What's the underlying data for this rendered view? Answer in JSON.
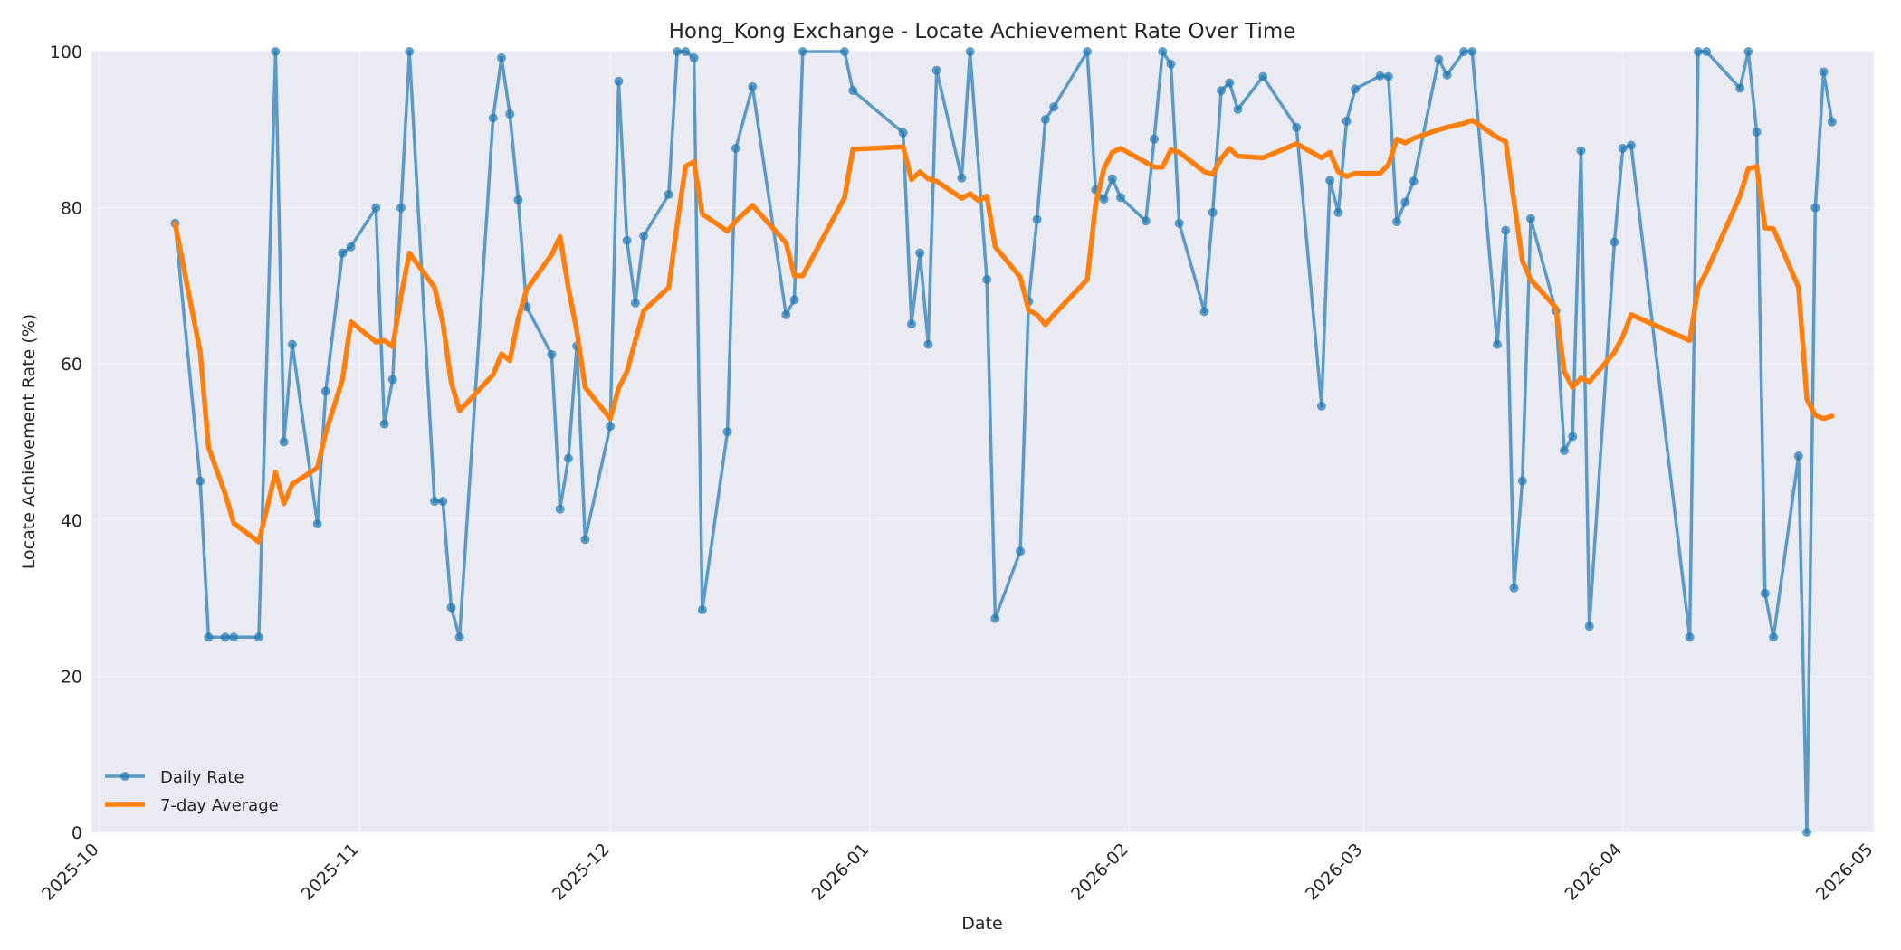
{
  "chart_data": {
    "type": "line",
    "title": "Hong_Kong Exchange - Locate Achievement Rate Over Time",
    "xlabel": "Date",
    "ylabel": "Locate Achievement Rate (%)",
    "xlim": [
      "2025-09-30",
      "2026-05-01"
    ],
    "ylim": [
      0,
      100
    ],
    "x_ticks": [
      "2025-10",
      "2025-11",
      "2025-12",
      "2026-01",
      "2026-02",
      "2026-03",
      "2026-04",
      "2026-05"
    ],
    "y_ticks": [
      0,
      20,
      40,
      60,
      80,
      100
    ],
    "grid": true,
    "legend_position": "lower-left",
    "series": [
      {
        "name": "Daily Rate",
        "color": "#1f77b4",
        "style": "line-markers",
        "points": [
          [
            "2025-10-10",
            78
          ],
          [
            "2025-10-13",
            45
          ],
          [
            "2025-10-14",
            25
          ],
          [
            "2025-10-16",
            25
          ],
          [
            "2025-10-17",
            25
          ],
          [
            "2025-10-20",
            25
          ],
          [
            "2025-10-22",
            100
          ],
          [
            "2025-10-23",
            50
          ],
          [
            "2025-10-24",
            62.5
          ],
          [
            "2025-10-27",
            39.5
          ],
          [
            "2025-10-28",
            56.5
          ],
          [
            "2025-10-30",
            74.2
          ],
          [
            "2025-10-31",
            75
          ],
          [
            "2025-11-03",
            80
          ],
          [
            "2025-11-04",
            52.3
          ],
          [
            "2025-11-05",
            58
          ],
          [
            "2025-11-06",
            80
          ],
          [
            "2025-11-07",
            100
          ],
          [
            "2025-11-10",
            42.4
          ],
          [
            "2025-11-11",
            42.4
          ],
          [
            "2025-11-12",
            28.8
          ],
          [
            "2025-11-13",
            25
          ],
          [
            "2025-11-17",
            91.5
          ],
          [
            "2025-11-18",
            99.2
          ],
          [
            "2025-11-19",
            92
          ],
          [
            "2025-11-20",
            81
          ],
          [
            "2025-11-21",
            67.3
          ],
          [
            "2025-11-24",
            61.2
          ],
          [
            "2025-11-25",
            41.4
          ],
          [
            "2025-11-26",
            47.9
          ],
          [
            "2025-11-27",
            62.3
          ],
          [
            "2025-11-28",
            37.5
          ],
          [
            "2025-12-01",
            52
          ],
          [
            "2025-12-02",
            96.2
          ],
          [
            "2025-12-03",
            75.8
          ],
          [
            "2025-12-04",
            67.8
          ],
          [
            "2025-12-05",
            76.4
          ],
          [
            "2025-12-08",
            81.7
          ],
          [
            "2025-12-09",
            100
          ],
          [
            "2025-12-10",
            100
          ],
          [
            "2025-12-11",
            99.2
          ],
          [
            "2025-12-12",
            28.5
          ],
          [
            "2025-12-15",
            51.3
          ],
          [
            "2025-12-16",
            87.6
          ],
          [
            "2025-12-18",
            95.5
          ],
          [
            "2025-12-22",
            66.3
          ],
          [
            "2025-12-23",
            68.2
          ],
          [
            "2025-12-24",
            100
          ],
          [
            "2025-12-29",
            100
          ],
          [
            "2025-12-30",
            95
          ],
          [
            "2026-01-05",
            89.6
          ],
          [
            "2026-01-06",
            65.1
          ],
          [
            "2026-01-07",
            74.2
          ],
          [
            "2026-01-08",
            62.5
          ],
          [
            "2026-01-09",
            97.6
          ],
          [
            "2026-01-12",
            83.8
          ],
          [
            "2026-01-13",
            100
          ],
          [
            "2026-01-15",
            70.8
          ],
          [
            "2026-01-16",
            27.4
          ],
          [
            "2026-01-19",
            36
          ],
          [
            "2026-01-20",
            68
          ],
          [
            "2026-01-21",
            78.5
          ],
          [
            "2026-01-22",
            91.3
          ],
          [
            "2026-01-23",
            92.9
          ],
          [
            "2026-01-27",
            100
          ],
          [
            "2026-01-28",
            82.3
          ],
          [
            "2026-01-29",
            81.1
          ],
          [
            "2026-01-30",
            83.7
          ],
          [
            "2026-01-31",
            81.3
          ],
          [
            "2026-02-03",
            78.3
          ],
          [
            "2026-02-04",
            88.8
          ],
          [
            "2026-02-05",
            100
          ],
          [
            "2026-02-06",
            98.4
          ],
          [
            "2026-02-07",
            78
          ],
          [
            "2026-02-10",
            66.7
          ],
          [
            "2026-02-11",
            79.4
          ],
          [
            "2026-02-12",
            95
          ],
          [
            "2026-02-13",
            96
          ],
          [
            "2026-02-14",
            92.6
          ],
          [
            "2026-02-17",
            96.8
          ],
          [
            "2026-02-21",
            90.3
          ],
          [
            "2026-02-24",
            54.6
          ],
          [
            "2026-02-25",
            83.5
          ],
          [
            "2026-02-26",
            79.4
          ],
          [
            "2026-02-27",
            91.1
          ],
          [
            "2026-02-28",
            95.2
          ],
          [
            "2026-03-03",
            96.9
          ],
          [
            "2026-03-04",
            96.8
          ],
          [
            "2026-03-05",
            78.2
          ],
          [
            "2026-03-06",
            80.7
          ],
          [
            "2026-03-07",
            83.4
          ],
          [
            "2026-03-10",
            99
          ],
          [
            "2026-03-11",
            97
          ],
          [
            "2026-03-13",
            100
          ],
          [
            "2026-03-14",
            100
          ],
          [
            "2026-03-17",
            62.5
          ],
          [
            "2026-03-18",
            77.1
          ],
          [
            "2026-03-19",
            31.3
          ],
          [
            "2026-03-20",
            45
          ],
          [
            "2026-03-21",
            78.6
          ],
          [
            "2026-03-24",
            66.8
          ],
          [
            "2026-03-25",
            48.9
          ],
          [
            "2026-03-26",
            50.7
          ],
          [
            "2026-03-27",
            87.3
          ],
          [
            "2026-03-28",
            26.4
          ],
          [
            "2026-03-31",
            75.6
          ],
          [
            "2026-04-01",
            87.6
          ],
          [
            "2026-04-02",
            88
          ],
          [
            "2026-04-09",
            25
          ],
          [
            "2026-04-10",
            100
          ],
          [
            "2026-04-11",
            100
          ],
          [
            "2026-04-15",
            95.3
          ],
          [
            "2026-04-16",
            100
          ],
          [
            "2026-04-17",
            89.7
          ],
          [
            "2026-04-18",
            30.6
          ],
          [
            "2026-04-19",
            25
          ],
          [
            "2026-04-22",
            48.2
          ],
          [
            "2026-04-23",
            0
          ],
          [
            "2026-04-24",
            80
          ],
          [
            "2026-04-25",
            97.4
          ],
          [
            "2026-04-26",
            91
          ]
        ]
      },
      {
        "name": "7-day Average",
        "color": "#ff7f0e",
        "style": "line",
        "points": [
          [
            "2025-10-10",
            78
          ],
          [
            "2025-10-13",
            61.5
          ],
          [
            "2025-10-14",
            49.3
          ],
          [
            "2025-10-16",
            43.3
          ],
          [
            "2025-10-17",
            39.6
          ],
          [
            "2025-10-20",
            37.2
          ],
          [
            "2025-10-22",
            46.1
          ],
          [
            "2025-10-23",
            42.1
          ],
          [
            "2025-10-24",
            44.6
          ],
          [
            "2025-10-27",
            46.7
          ],
          [
            "2025-10-28",
            51.2
          ],
          [
            "2025-10-30",
            58
          ],
          [
            "2025-10-31",
            65.4
          ],
          [
            "2025-11-03",
            62.8
          ],
          [
            "2025-11-04",
            63
          ],
          [
            "2025-11-05",
            62.2
          ],
          [
            "2025-11-06",
            68.7
          ],
          [
            "2025-11-07",
            74.2
          ],
          [
            "2025-11-10",
            69.8
          ],
          [
            "2025-11-11",
            65.2
          ],
          [
            "2025-11-12",
            57.6
          ],
          [
            "2025-11-13",
            54
          ],
          [
            "2025-11-17",
            58.6
          ],
          [
            "2025-11-18",
            61.3
          ],
          [
            "2025-11-19",
            60.4
          ],
          [
            "2025-11-20",
            65.8
          ],
          [
            "2025-11-21",
            69.5
          ],
          [
            "2025-11-24",
            74
          ],
          [
            "2025-11-25",
            76.3
          ],
          [
            "2025-11-26",
            69.7
          ],
          [
            "2025-11-27",
            64.2
          ],
          [
            "2025-11-28",
            57
          ],
          [
            "2025-12-01",
            53
          ],
          [
            "2025-12-02",
            56.9
          ],
          [
            "2025-12-03",
            59
          ],
          [
            "2025-12-04",
            63
          ],
          [
            "2025-12-05",
            66.8
          ],
          [
            "2025-12-08",
            69.8
          ],
          [
            "2025-12-09",
            77.9
          ],
          [
            "2025-12-10",
            85.3
          ],
          [
            "2025-12-11",
            85.9
          ],
          [
            "2025-12-12",
            79.2
          ],
          [
            "2025-12-15",
            77
          ],
          [
            "2025-12-16",
            78.3
          ],
          [
            "2025-12-18",
            80.3
          ],
          [
            "2025-12-22",
            75.5
          ],
          [
            "2025-12-23",
            71.3
          ],
          [
            "2025-12-24",
            71.3
          ],
          [
            "2025-12-29",
            81.3
          ],
          [
            "2025-12-30",
            87.5
          ],
          [
            "2026-01-05",
            87.8
          ],
          [
            "2026-01-06",
            83.6
          ],
          [
            "2026-01-07",
            84.6
          ],
          [
            "2026-01-08",
            83.7
          ],
          [
            "2026-01-09",
            83.4
          ],
          [
            "2026-01-12",
            81.2
          ],
          [
            "2026-01-13",
            81.8
          ],
          [
            "2026-01-14",
            80.9
          ],
          [
            "2026-01-15",
            81.5
          ],
          [
            "2026-01-16",
            75
          ],
          [
            "2026-01-19",
            71.1
          ],
          [
            "2026-01-20",
            66.9
          ],
          [
            "2026-01-21",
            66.3
          ],
          [
            "2026-01-22",
            65
          ],
          [
            "2026-01-23",
            66.3
          ],
          [
            "2026-01-27",
            70.8
          ],
          [
            "2026-01-28",
            80.4
          ],
          [
            "2026-01-29",
            85
          ],
          [
            "2026-01-30",
            87.1
          ],
          [
            "2026-01-31",
            87.6
          ],
          [
            "2026-02-03",
            85.8
          ],
          [
            "2026-02-04",
            85.2
          ],
          [
            "2026-02-05",
            85.2
          ],
          [
            "2026-02-06",
            87.4
          ],
          [
            "2026-02-07",
            87.1
          ],
          [
            "2026-02-10",
            84.6
          ],
          [
            "2026-02-11",
            84.3
          ],
          [
            "2026-02-12",
            86.3
          ],
          [
            "2026-02-13",
            87.6
          ],
          [
            "2026-02-14",
            86.6
          ],
          [
            "2026-02-17",
            86.4
          ],
          [
            "2026-02-21",
            88.2
          ],
          [
            "2026-02-24",
            86.4
          ],
          [
            "2026-02-25",
            87.1
          ],
          [
            "2026-02-26",
            84.6
          ],
          [
            "2026-02-27",
            84
          ],
          [
            "2026-02-28",
            84.4
          ],
          [
            "2026-03-03",
            84.4
          ],
          [
            "2026-03-04",
            85.5
          ],
          [
            "2026-03-05",
            88.8
          ],
          [
            "2026-03-06",
            88.3
          ],
          [
            "2026-03-07",
            88.9
          ],
          [
            "2026-03-10",
            90
          ],
          [
            "2026-03-11",
            90.3
          ],
          [
            "2026-03-13",
            90.8
          ],
          [
            "2026-03-14",
            91.2
          ],
          [
            "2026-03-17",
            89
          ],
          [
            "2026-03-18",
            88.5
          ],
          [
            "2026-03-19",
            80.8
          ],
          [
            "2026-03-20",
            73.2
          ],
          [
            "2026-03-21",
            70.8
          ],
          [
            "2026-03-24",
            67.2
          ],
          [
            "2026-03-25",
            59
          ],
          [
            "2026-03-26",
            57
          ],
          [
            "2026-03-27",
            58.2
          ],
          [
            "2026-03-28",
            57.7
          ],
          [
            "2026-03-31",
            61.5
          ],
          [
            "2026-04-01",
            63.5
          ],
          [
            "2026-04-02",
            66.3
          ],
          [
            "2026-04-09",
            63
          ],
          [
            "2026-04-10",
            69.8
          ],
          [
            "2026-04-11",
            71.8
          ],
          [
            "2026-04-15",
            81.5
          ],
          [
            "2026-04-16",
            85
          ],
          [
            "2026-04-17",
            85.3
          ],
          [
            "2026-04-18",
            77.4
          ],
          [
            "2026-04-19",
            77.3
          ],
          [
            "2026-04-22",
            69.8
          ],
          [
            "2026-04-23",
            55.5
          ],
          [
            "2026-04-24",
            53.4
          ],
          [
            "2026-04-25",
            53
          ],
          [
            "2026-04-26",
            53.3
          ]
        ]
      }
    ]
  }
}
